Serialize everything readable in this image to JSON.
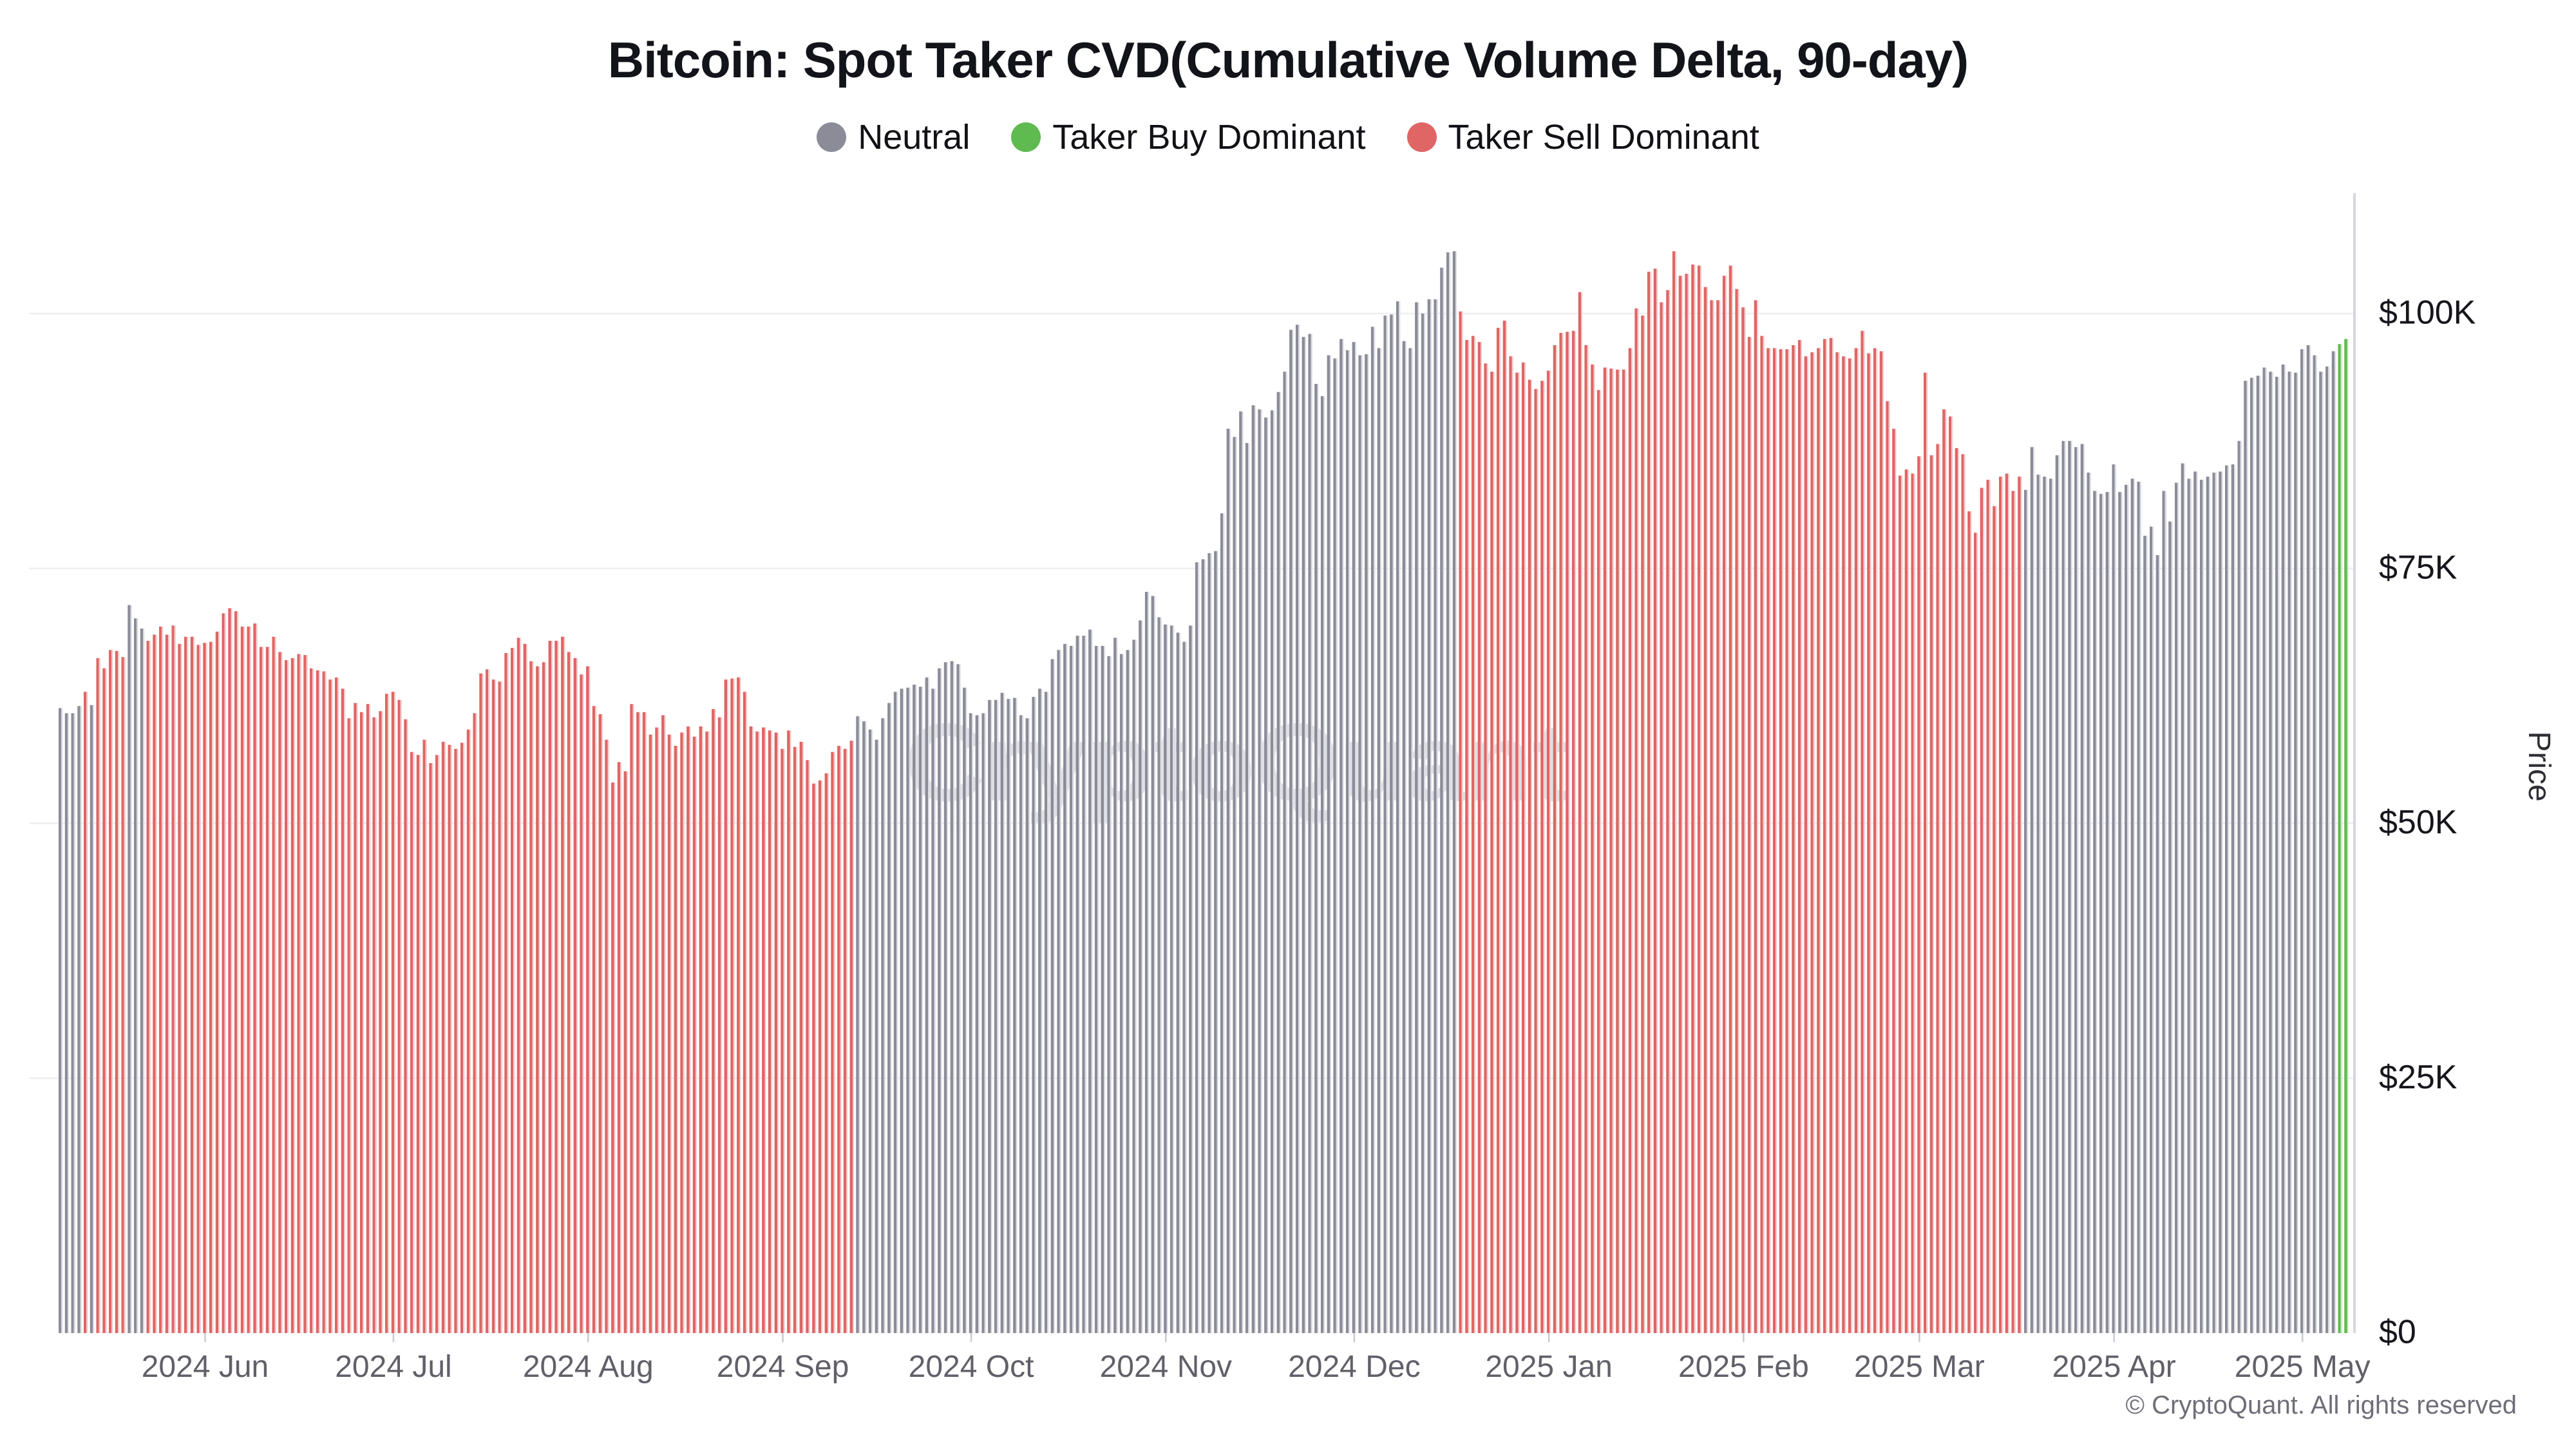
{
  "header": {
    "title": "Bitcoin: Spot Taker CVD(Cumulative Volume Delta, 90-day)"
  },
  "legend": {
    "items": [
      {
        "label": "Neutral",
        "color": "#8C8C98",
        "state": "n"
      },
      {
        "label": "Taker Buy Dominant",
        "color": "#5FBA50",
        "state": "b"
      },
      {
        "label": "Taker Sell Dominant",
        "color": "#E06565",
        "state": "s"
      }
    ]
  },
  "watermark": {
    "text": "CryptoQuant"
  },
  "footer": {
    "text": "© CryptoQuant. All rights reserved"
  },
  "chart_data": {
    "type": "bar",
    "title": "Bitcoin: Spot Taker CVD(Cumulative Volume Delta, 90-day)",
    "ylabel": "Price",
    "legend_position": "top",
    "grid": "horizontal",
    "ylim": [
      0,
      111.8
    ],
    "y_unit": "USD thousands",
    "y_ticks": [
      {
        "label": "$0",
        "v": 0
      },
      {
        "label": "$25K",
        "v": 25
      },
      {
        "label": "$50K",
        "v": 50
      },
      {
        "label": "$75K",
        "v": 75
      },
      {
        "label": "$100K",
        "v": 100
      }
    ],
    "x_start_date": "2024-05-09",
    "x_ticks": [
      {
        "label": "2024 Jun",
        "i": 23
      },
      {
        "label": "2024 Jul",
        "i": 53
      },
      {
        "label": "2024 Aug",
        "i": 84
      },
      {
        "label": "2024 Sep",
        "i": 115
      },
      {
        "label": "2024 Oct",
        "i": 145
      },
      {
        "label": "2024 Nov",
        "i": 176
      },
      {
        "label": "2024 Dec",
        "i": 206
      },
      {
        "label": "2025 Jan",
        "i": 237
      },
      {
        "label": "2025 Feb",
        "i": 268
      },
      {
        "label": "2025 Mar",
        "i": 296
      },
      {
        "label": "2025 Apr",
        "i": 327
      },
      {
        "label": "2025 May",
        "i": 357
      }
    ],
    "state_colors": {
      "n": "#8C8C98",
      "b": "#5FBA50",
      "s": "#E06565"
    },
    "state_colors_light": {
      "n": "#DCDCE4",
      "b": "#C9E7C2",
      "s": "#F3CDCD"
    },
    "axis_color": "#D6D6E0",
    "gridline_color": "#EEEEF2",
    "tick_color": "#C9C9D2",
    "y_label_color": "#16161d",
    "x_label_color": "#606069",
    "states_runs": [
      [
        "n",
        4
      ],
      [
        "s",
        1
      ],
      [
        "n",
        1
      ],
      [
        "s",
        5
      ],
      [
        "n",
        3
      ],
      [
        "s",
        113
      ],
      [
        "n",
        96
      ],
      [
        "s",
        90
      ],
      [
        "n",
        50
      ],
      [
        "b",
        2
      ]
    ],
    "values": [
      61.3,
      60.8,
      60.8,
      61.5,
      62.9,
      61.6,
      66.2,
      65.2,
      67.0,
      66.9,
      66.3,
      71.4,
      70.1,
      69.1,
      67.9,
      68.5,
      69.3,
      68.5,
      69.4,
      67.6,
      68.3,
      68.3,
      67.5,
      67.7,
      67.8,
      68.8,
      70.6,
      71.1,
      70.8,
      69.3,
      69.3,
      69.6,
      67.3,
      67.3,
      68.3,
      66.8,
      66.0,
      66.2,
      66.6,
      66.5,
      65.2,
      65.0,
      64.9,
      64.1,
      64.3,
      63.2,
      60.3,
      61.8,
      60.9,
      61.7,
      60.4,
      61.0,
      62.7,
      62.9,
      62.1,
      60.2,
      57.0,
      56.7,
      58.2,
      55.9,
      56.7,
      58.0,
      57.7,
      57.3,
      57.9,
      59.2,
      60.8,
      64.7,
      65.1,
      64.1,
      63.9,
      66.7,
      67.2,
      68.2,
      67.6,
      65.9,
      65.4,
      65.8,
      67.9,
      67.9,
      68.3,
      66.8,
      66.2,
      64.6,
      65.4,
      61.5,
      60.7,
      58.2,
      54.0,
      56.0,
      55.1,
      61.7,
      60.9,
      60.9,
      58.7,
      59.4,
      60.6,
      58.7,
      57.6,
      58.9,
      59.5,
      58.5,
      59.5,
      59.0,
      61.2,
      60.4,
      64.1,
      64.2,
      64.3,
      62.9,
      59.5,
      59.0,
      59.4,
      59.1,
      58.9,
      57.3,
      59.1,
      57.5,
      58.0,
      56.2,
      53.9,
      54.2,
      54.9,
      57.0,
      57.6,
      57.3,
      58.1,
      60.5,
      60.0,
      59.2,
      58.2,
      60.3,
      61.8,
      62.9,
      63.2,
      63.3,
      63.6,
      63.4,
      64.3,
      63.2,
      65.2,
      65.8,
      65.9,
      65.6,
      63.3,
      60.8,
      60.6,
      60.8,
      62.1,
      62.1,
      62.8,
      62.2,
      62.3,
      60.6,
      60.3,
      62.4,
      63.2,
      62.9,
      66.1,
      67.0,
      67.6,
      67.4,
      68.4,
      68.4,
      69.0,
      67.4,
      67.4,
      66.4,
      68.2,
      66.6,
      67.0,
      68.0,
      69.9,
      72.7,
      72.3,
      70.2,
      69.5,
      69.4,
      68.7,
      67.8,
      69.4,
      75.6,
      75.9,
      76.5,
      76.7,
      80.4,
      88.7,
      87.9,
      90.4,
      87.3,
      91.0,
      90.6,
      89.8,
      90.5,
      92.3,
      94.3,
      98.4,
      98.9,
      97.7,
      98.0,
      93.1,
      91.9,
      95.9,
      95.6,
      97.5,
      96.4,
      97.2,
      95.9,
      96.0,
      98.7,
      96.6,
      99.8,
      99.9,
      101.2,
      97.3,
      96.6,
      101.1,
      100.0,
      101.4,
      101.4,
      104.5,
      106.0,
      106.1,
      100.2,
      97.4,
      97.8,
      97.2,
      95.1,
      94.3,
      98.6,
      99.3,
      95.8,
      94.2,
      95.2,
      93.5,
      92.6,
      93.4,
      94.4,
      96.9,
      98.1,
      98.2,
      98.3,
      102.1,
      96.9,
      95.0,
      92.5,
      94.7,
      94.6,
      94.5,
      94.5,
      96.6,
      100.5,
      99.8,
      104.1,
      104.4,
      101.1,
      102.3,
      106.1,
      103.7,
      103.9,
      104.8,
      104.7,
      102.6,
      101.3,
      101.3,
      103.7,
      104.7,
      102.4,
      100.6,
      97.7,
      101.3,
      97.8,
      96.6,
      96.6,
      96.5,
      96.5,
      96.9,
      97.4,
      95.8,
      96.2,
      96.6,
      97.5,
      97.6,
      96.2,
      95.8,
      95.6,
      96.6,
      98.3,
      96.1,
      96.6,
      96.3,
      91.4,
      88.7,
      84.1,
      84.7,
      84.3,
      86.0,
      94.2,
      86.1,
      87.2,
      90.6,
      89.9,
      86.8,
      86.2,
      80.6,
      78.5,
      82.9,
      83.7,
      81.1,
      84.0,
      84.3,
      82.6,
      84.0,
      82.7,
      86.9,
      84.2,
      84.0,
      83.8,
      86.1,
      87.5,
      87.5,
      86.9,
      87.2,
      84.4,
      82.6,
      82.3,
      82.5,
      85.2,
      82.5,
      83.2,
      83.8,
      83.5,
      78.2,
      79.1,
      76.3,
      82.6,
      79.6,
      83.4,
      85.3,
      83.8,
      84.5,
      83.7,
      84.0,
      84.4,
      84.5,
      85.1,
      85.2,
      87.5,
      93.4,
      93.7,
      93.9,
      94.7,
      94.3,
      93.8,
      95.0,
      94.3,
      94.2,
      96.5,
      96.9,
      95.9,
      94.3,
      94.8,
      96.3,
      97.0,
      97.5
    ]
  }
}
